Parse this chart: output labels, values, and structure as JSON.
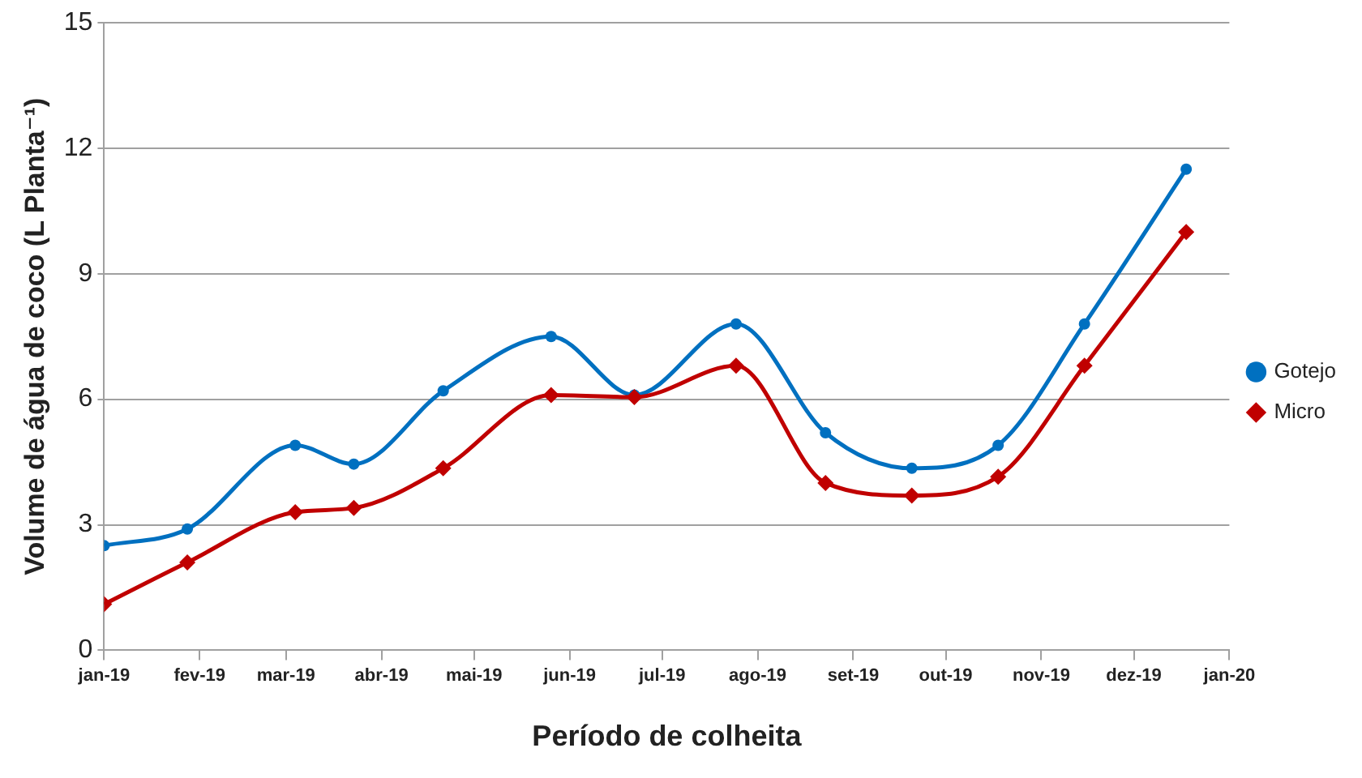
{
  "chart_data": {
    "type": "line",
    "xlabel": "Período de colheita",
    "ylabel": "Volume de água de coco (L Planta⁻¹)",
    "xlim": [
      "2019-01-01",
      "2020-01-01"
    ],
    "xticks": [
      {
        "value": "2019-01-01",
        "label": "jan-19"
      },
      {
        "value": "2019-02-01",
        "label": "fev-19"
      },
      {
        "value": "2019-03-01",
        "label": "mar-19"
      },
      {
        "value": "2019-04-01",
        "label": "abr-19"
      },
      {
        "value": "2019-05-01",
        "label": "mai-19"
      },
      {
        "value": "2019-06-01",
        "label": "jun-19"
      },
      {
        "value": "2019-07-01",
        "label": "jul-19"
      },
      {
        "value": "2019-08-01",
        "label": "ago-19"
      },
      {
        "value": "2019-09-01",
        "label": "set-19"
      },
      {
        "value": "2019-10-01",
        "label": "out-19"
      },
      {
        "value": "2019-11-01",
        "label": "nov-19"
      },
      {
        "value": "2019-12-01",
        "label": "dez-19"
      },
      {
        "value": "2020-01-01",
        "label": "jan-20"
      }
    ],
    "ylim": [
      0,
      15
    ],
    "yticks": [
      0,
      3,
      6,
      9,
      12,
      15
    ],
    "x": [
      "2019-01-01",
      "2019-01-28",
      "2019-03-04",
      "2019-03-23",
      "2019-04-21",
      "2019-05-26",
      "2019-06-22",
      "2019-07-25",
      "2019-08-23",
      "2019-09-20",
      "2019-10-18",
      "2019-11-15",
      "2019-12-18"
    ],
    "series": [
      {
        "name": "Gotejo",
        "color": "#0070c0",
        "marker": "circle",
        "values": [
          2.5,
          2.9,
          4.9,
          4.45,
          6.2,
          7.5,
          6.1,
          7.8,
          5.2,
          4.35,
          4.9,
          7.8,
          11.5
        ]
      },
      {
        "name": "Micro",
        "color": "#c00000",
        "marker": "diamond",
        "values": [
          1.1,
          2.1,
          3.3,
          3.4,
          4.35,
          6.1,
          6.05,
          6.8,
          4.0,
          3.7,
          4.15,
          6.8,
          10.0
        ]
      }
    ],
    "grid": "y",
    "legend": "right",
    "line_style": "solid"
  }
}
